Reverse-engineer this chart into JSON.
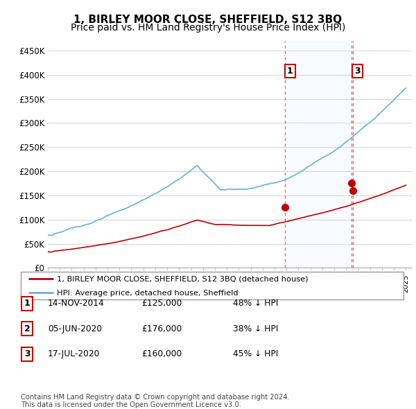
{
  "title": "1, BIRLEY MOOR CLOSE, SHEFFIELD, S12 3BQ",
  "subtitle": "Price paid vs. HM Land Registry's House Price Index (HPI)",
  "ylim": [
    0,
    470000
  ],
  "yticks": [
    0,
    50000,
    100000,
    150000,
    200000,
    250000,
    300000,
    350000,
    400000,
    450000
  ],
  "ytick_labels": [
    "£0",
    "£50K",
    "£100K",
    "£150K",
    "£200K",
    "£250K",
    "£300K",
    "£350K",
    "£400K",
    "£450K"
  ],
  "hpi_color": "#6aaed6",
  "price_color": "#c00000",
  "vline_color": "#e06060",
  "fill_color": "#ddeeff",
  "sale_points": [
    {
      "year": 2014.88,
      "price": 125000,
      "label": "1"
    },
    {
      "year": 2020.42,
      "price": 176000,
      "label": "2"
    },
    {
      "year": 2020.54,
      "price": 160000,
      "label": "3"
    }
  ],
  "label_boxes": [
    {
      "year": 2014.88,
      "label": "1"
    },
    {
      "year": 2020.54,
      "label": "3"
    }
  ],
  "legend_label_price": "1, BIRLEY MOOR CLOSE, SHEFFIELD, S12 3BQ (detached house)",
  "legend_label_hpi": "HPI: Average price, detached house, Sheffield",
  "table_rows": [
    [
      "1",
      "14-NOV-2014",
      "£125,000",
      "48% ↓ HPI"
    ],
    [
      "2",
      "05-JUN-2020",
      "£176,000",
      "38% ↓ HPI"
    ],
    [
      "3",
      "17-JUL-2020",
      "£160,000",
      "45% ↓ HPI"
    ]
  ],
  "footnote": "Contains HM Land Registry data © Crown copyright and database right 2024.\nThis data is licensed under the Open Government Licence v3.0.",
  "title_fontsize": 11,
  "subtitle_fontsize": 10,
  "tick_fontsize": 8.5
}
